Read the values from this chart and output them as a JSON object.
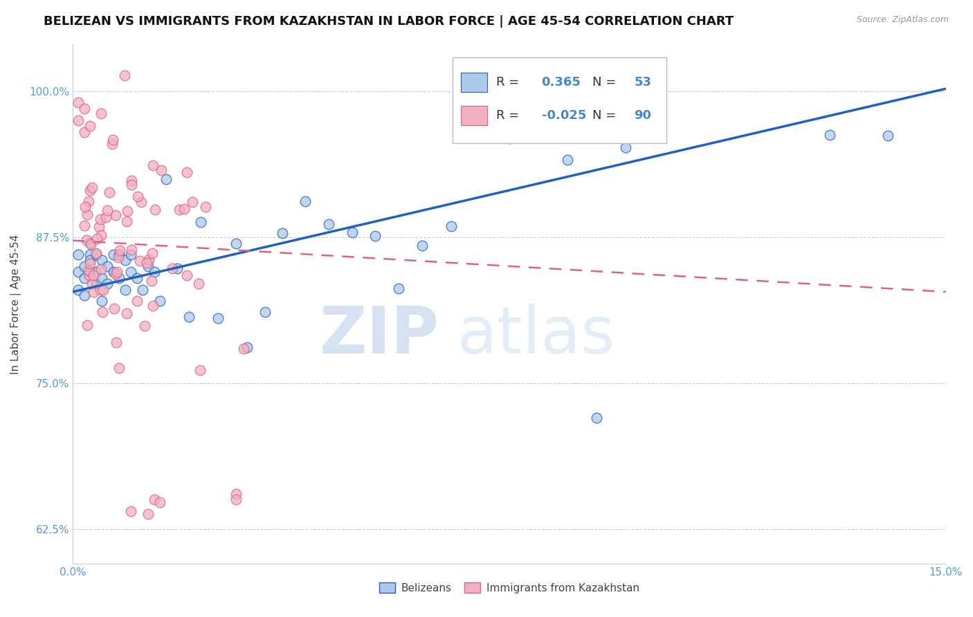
{
  "title": "BELIZEAN VS IMMIGRANTS FROM KAZAKHSTAN IN LABOR FORCE | AGE 45-54 CORRELATION CHART",
  "source": "Source: ZipAtlas.com",
  "ylabel": "In Labor Force | Age 45-54",
  "xlim": [
    0.0,
    0.15
  ],
  "ylim": [
    0.595,
    1.04
  ],
  "xticks": [
    0.0,
    0.15
  ],
  "xticklabels": [
    "0.0%",
    "15.0%"
  ],
  "yticks": [
    0.625,
    0.75,
    0.875,
    1.0
  ],
  "yticklabels": [
    "62.5%",
    "75.0%",
    "87.5%",
    "100.0%"
  ],
  "blue_R": 0.365,
  "blue_N": 53,
  "pink_R": -0.025,
  "pink_N": 90,
  "blue_color": "#adc8e8",
  "pink_color": "#f0b0c0",
  "blue_line_color": "#2060c0",
  "pink_line_color": "#e06080",
  "legend_label_blue": "Belizeans",
  "legend_label_pink": "Immigrants from Kazakhstan",
  "watermark_zip": "ZIP",
  "watermark_atlas": "atlas",
  "title_fontsize": 13,
  "axis_label_fontsize": 11,
  "tick_fontsize": 11,
  "blue_line_x0": 0.0,
  "blue_line_y0": 0.828,
  "blue_line_x1": 0.15,
  "blue_line_y1": 1.002,
  "pink_line_x0": 0.0,
  "pink_line_y0": 0.872,
  "pink_line_x1": 0.15,
  "pink_line_y1": 0.828
}
